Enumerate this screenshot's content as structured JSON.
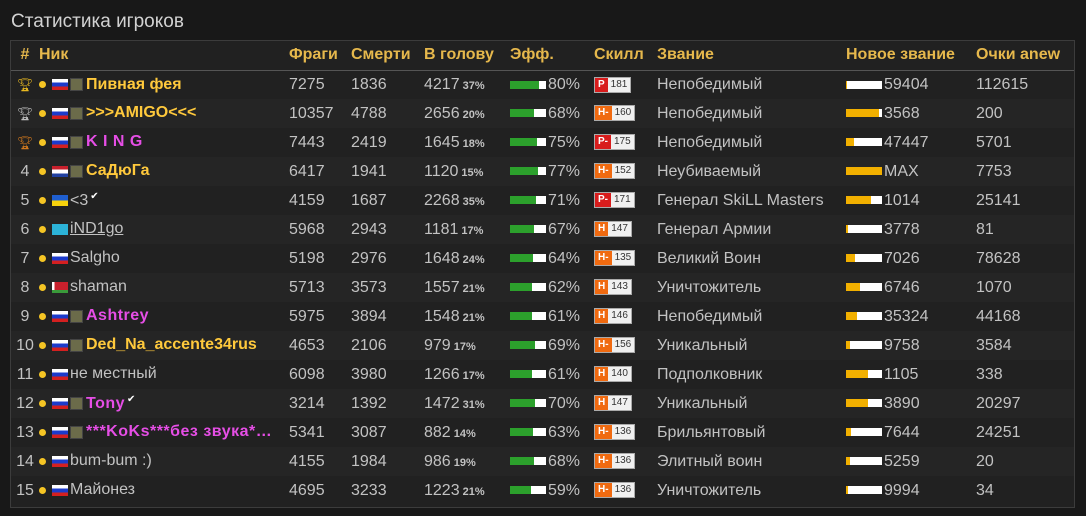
{
  "title": "Статистика игроков",
  "headers": [
    "#",
    "Ник",
    "Фраги",
    "Смерти",
    "В голову",
    "Эфф.",
    "Скилл",
    "Звание",
    "Новое звание",
    "Очки anew"
  ],
  "players": [
    {
      "rank": "",
      "trophy": "gold",
      "flag": "ru",
      "avatar": true,
      "nick": "Пивная фея",
      "style": "gold",
      "tick": false,
      "frags": "7275",
      "deaths": "1836",
      "hs": "4217",
      "hs_pct": "37%",
      "eff": "80%",
      "eff_val": 0.8,
      "skill_letter": "P",
      "skill_value": "181",
      "skill_type": "p",
      "zvanie": "Непобедимый",
      "new_rank": "59404",
      "new_rank_fill": 0.02,
      "anew": "112615"
    },
    {
      "rank": "",
      "trophy": "silver",
      "flag": "ru",
      "avatar": true,
      "nick": ">>>AMIGO<<<",
      "style": "gold",
      "tick": false,
      "frags": "10357",
      "deaths": "4788",
      "hs": "2656",
      "hs_pct": "20%",
      "eff": "68%",
      "eff_val": 0.68,
      "skill_letter": "H-",
      "skill_value": "160",
      "skill_type": "h",
      "zvanie": "Непобедимый",
      "new_rank": "3568",
      "new_rank_fill": 0.92,
      "anew": "200"
    },
    {
      "rank": "",
      "trophy": "bronze",
      "flag": "ru",
      "avatar": true,
      "nick": "K I N G",
      "style": "pink",
      "tick": false,
      "frags": "7443",
      "deaths": "2419",
      "hs": "1645",
      "hs_pct": "18%",
      "eff": "75%",
      "eff_val": 0.75,
      "skill_letter": "P-",
      "skill_value": "175",
      "skill_type": "p",
      "zvanie": "Непобедимый",
      "new_rank": "47447",
      "new_rank_fill": 0.22,
      "anew": "5701"
    },
    {
      "rank": "4",
      "trophy": "",
      "flag": "nl",
      "avatar": true,
      "nick": "СаДюГа",
      "style": "gold",
      "tick": false,
      "frags": "6417",
      "deaths": "1941",
      "hs": "1120",
      "hs_pct": "15%",
      "eff": "77%",
      "eff_val": 0.77,
      "skill_letter": "H-",
      "skill_value": "152",
      "skill_type": "h",
      "zvanie": "Неубиваемый",
      "new_rank": "MAX",
      "new_rank_fill": 1.0,
      "anew": "7753"
    },
    {
      "rank": "5",
      "trophy": "",
      "flag": "ua",
      "avatar": false,
      "nick": "<3",
      "style": "plain",
      "tick": true,
      "frags": "4159",
      "deaths": "1687",
      "hs": "2268",
      "hs_pct": "35%",
      "eff": "71%",
      "eff_val": 0.71,
      "skill_letter": "P-",
      "skill_value": "171",
      "skill_type": "p",
      "zvanie": "Генерал SkiLL Masters",
      "new_rank": "1014",
      "new_rank_fill": 0.7,
      "anew": "25141"
    },
    {
      "rank": "6",
      "trophy": "",
      "flag": "kz",
      "avatar": false,
      "nick": "iND1go",
      "style": "link",
      "tick": false,
      "frags": "5968",
      "deaths": "2943",
      "hs": "1181",
      "hs_pct": "17%",
      "eff": "67%",
      "eff_val": 0.67,
      "skill_letter": "H",
      "skill_value": "147",
      "skill_type": "h",
      "zvanie": "Генерал Армии",
      "new_rank": "3778",
      "new_rank_fill": 0.05,
      "anew": "81"
    },
    {
      "rank": "7",
      "trophy": "",
      "flag": "ru",
      "avatar": false,
      "nick": "Salgho",
      "style": "plain",
      "tick": false,
      "frags": "5198",
      "deaths": "2976",
      "hs": "1648",
      "hs_pct": "24%",
      "eff": "64%",
      "eff_val": 0.64,
      "skill_letter": "H-",
      "skill_value": "135",
      "skill_type": "h",
      "zvanie": "Великий Воин",
      "new_rank": "7026",
      "new_rank_fill": 0.25,
      "anew": "78628"
    },
    {
      "rank": "8",
      "trophy": "",
      "flag": "by",
      "avatar": false,
      "nick": "shaman",
      "style": "plain",
      "tick": false,
      "frags": "5713",
      "deaths": "3573",
      "hs": "1557",
      "hs_pct": "21%",
      "eff": "62%",
      "eff_val": 0.62,
      "skill_letter": "H",
      "skill_value": "143",
      "skill_type": "h",
      "zvanie": "Уничтожитель",
      "new_rank": "6746",
      "new_rank_fill": 0.4,
      "anew": "1070"
    },
    {
      "rank": "9",
      "trophy": "",
      "flag": "ru",
      "avatar": true,
      "nick": "Ashtrey",
      "style": "pink",
      "tick": false,
      "frags": "5975",
      "deaths": "3894",
      "hs": "1548",
      "hs_pct": "21%",
      "eff": "61%",
      "eff_val": 0.61,
      "skill_letter": "H",
      "skill_value": "146",
      "skill_type": "h",
      "zvanie": "Непобедимый",
      "new_rank": "35324",
      "new_rank_fill": 0.3,
      "anew": "44168"
    },
    {
      "rank": "10",
      "trophy": "",
      "flag": "ru",
      "avatar": true,
      "nick": "Ded_Na_accente34rus",
      "style": "gold",
      "tick": false,
      "frags": "4653",
      "deaths": "2106",
      "hs": "979",
      "hs_pct": "17%",
      "eff": "69%",
      "eff_val": 0.69,
      "skill_letter": "H-",
      "skill_value": "156",
      "skill_type": "h",
      "zvanie": "Уникальный",
      "new_rank": "9758",
      "new_rank_fill": 0.1,
      "anew": "3584"
    },
    {
      "rank": "11",
      "trophy": "",
      "flag": "ru",
      "avatar": false,
      "nick": "не местный",
      "style": "plain",
      "tick": false,
      "frags": "6098",
      "deaths": "3980",
      "hs": "1266",
      "hs_pct": "17%",
      "eff": "61%",
      "eff_val": 0.61,
      "skill_letter": "H",
      "skill_value": "140",
      "skill_type": "h",
      "zvanie": "Подполковник",
      "new_rank": "1105",
      "new_rank_fill": 0.6,
      "anew": "338"
    },
    {
      "rank": "12",
      "trophy": "",
      "flag": "ru",
      "avatar": true,
      "nick": "Tony",
      "style": "pink",
      "tick": true,
      "frags": "3214",
      "deaths": "1392",
      "hs": "1472",
      "hs_pct": "31%",
      "eff": "70%",
      "eff_val": 0.7,
      "skill_letter": "H",
      "skill_value": "147",
      "skill_type": "h",
      "zvanie": "Уникальный",
      "new_rank": "3890",
      "new_rank_fill": 0.6,
      "anew": "20297"
    },
    {
      "rank": "13",
      "trophy": "",
      "flag": "ru",
      "avatar": true,
      "nick": "***KoKs***без звука*…",
      "style": "pink",
      "tick": false,
      "frags": "5341",
      "deaths": "3087",
      "hs": "882",
      "hs_pct": "14%",
      "eff": "63%",
      "eff_val": 0.63,
      "skill_letter": "H-",
      "skill_value": "136",
      "skill_type": "h",
      "zvanie": "Брильянтовый",
      "new_rank": "7644",
      "new_rank_fill": 0.15,
      "anew": "24251"
    },
    {
      "rank": "14",
      "trophy": "",
      "flag": "ru",
      "avatar": false,
      "nick": "bum-bum :)",
      "style": "plain",
      "tick": false,
      "frags": "4155",
      "deaths": "1984",
      "hs": "986",
      "hs_pct": "19%",
      "eff": "68%",
      "eff_val": 0.68,
      "skill_letter": "H-",
      "skill_value": "136",
      "skill_type": "h",
      "zvanie": "Элитный воин",
      "new_rank": "5259",
      "new_rank_fill": 0.1,
      "anew": "20"
    },
    {
      "rank": "15",
      "trophy": "",
      "flag": "ru",
      "avatar": false,
      "nick": "Майонез",
      "style": "plain",
      "tick": false,
      "frags": "4695",
      "deaths": "3233",
      "hs": "1223",
      "hs_pct": "21%",
      "eff": "59%",
      "eff_val": 0.59,
      "skill_letter": "H-",
      "skill_value": "136",
      "skill_type": "h",
      "zvanie": "Уничтожитель",
      "new_rank": "9994",
      "new_rank_fill": 0.05,
      "anew": "34"
    }
  ],
  "colors": {
    "header": "#e6b84c",
    "gold_nick": "#ffc93c",
    "pink_nick": "#e64ee6",
    "eff_fill": "#2ca02c",
    "rank_fill": "#f2b000",
    "skill_p": "#d81c1c",
    "skill_h": "#f06a10"
  }
}
